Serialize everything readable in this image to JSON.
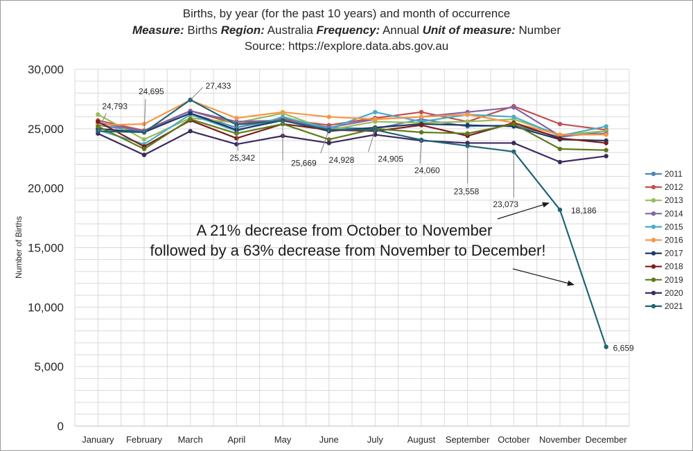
{
  "chart_data": {
    "type": "line",
    "title": "Births, by year (for the past 10 years) and month of occurrence",
    "subtitle_parts": [
      {
        "k": "Measure:",
        "v": "Births"
      },
      {
        "k": "Region:",
        "v": "Australia"
      },
      {
        "k": "Frequency:",
        "v": "Annual"
      },
      {
        "k": "Unit of measure:",
        "v": "Number"
      }
    ],
    "source": "Source: https://explore.data.abs.gov.au",
    "ylabel": "Number of Births",
    "ylim": [
      0,
      30000
    ],
    "y_ticks": [
      "0",
      "5,000",
      "10,000",
      "15,000",
      "20,000",
      "25,000",
      "30,000"
    ],
    "grid": true,
    "legend_position": "right",
    "categories": [
      "January",
      "February",
      "March",
      "April",
      "May",
      "June",
      "July",
      "August",
      "September",
      "October",
      "November",
      "December"
    ],
    "series": [
      {
        "name": "2011",
        "color": "#4e86b8",
        "values": [
          25300,
          24750,
          26300,
          25100,
          25900,
          25100,
          25000,
          25800,
          25200,
          25300,
          24300,
          24800
        ]
      },
      {
        "name": "2012",
        "color": "#c0504d",
        "values": [
          25700,
          24850,
          26500,
          25400,
          25800,
          25300,
          25900,
          26400,
          25600,
          26900,
          25400,
          24900
        ]
      },
      {
        "name": "2013",
        "color": "#9bbb59",
        "values": [
          26200,
          24100,
          25900,
          25500,
          26300,
          24900,
          25600,
          25500,
          25600,
          25800,
          24500,
          24800
        ]
      },
      {
        "name": "2014",
        "color": "#8064a2",
        "values": [
          25500,
          24800,
          26500,
          25600,
          25700,
          25100,
          25800,
          26000,
          26400,
          26800,
          24400,
          24600
        ]
      },
      {
        "name": "2015",
        "color": "#4bacc6",
        "values": [
          24900,
          23700,
          26200,
          24800,
          26000,
          25000,
          26400,
          25600,
          26200,
          26000,
          24400,
          25200
        ]
      },
      {
        "name": "2016",
        "color": "#f79646",
        "values": [
          25300,
          25400,
          27400,
          25900,
          26400,
          26000,
          25800,
          26000,
          26200,
          25500,
          24500,
          24500
        ]
      },
      {
        "name": "2017",
        "color": "#1f3864",
        "values": [
          25000,
          24700,
          26300,
          24900,
          25700,
          24800,
          25100,
          25400,
          25300,
          25200,
          24100,
          24000
        ]
      },
      {
        "name": "2018",
        "color": "#7b1d1d",
        "values": [
          25600,
          23500,
          25700,
          24200,
          25400,
          24900,
          24800,
          25300,
          24400,
          25500,
          24200,
          23800
        ]
      },
      {
        "name": "2019",
        "color": "#5e7a18",
        "values": [
          25200,
          23300,
          25800,
          24600,
          25400,
          24100,
          25000,
          24700,
          24600,
          25400,
          23300,
          23200
        ]
      },
      {
        "name": "2020",
        "color": "#3c2a5c",
        "values": [
          24600,
          22800,
          24800,
          23700,
          24400,
          23800,
          24500,
          24000,
          23800,
          23800,
          22200,
          22700
        ]
      },
      {
        "name": "2021",
        "color": "#1e6375",
        "values": [
          24793,
          24695,
          27433,
          25342,
          25669,
          24928,
          24905,
          24060,
          23558,
          23073,
          18186,
          6659
        ]
      }
    ],
    "data_labels": [
      {
        "text": "24,793"
      },
      {
        "text": "24,695"
      },
      {
        "text": "27,433"
      },
      {
        "text": "25,342"
      },
      {
        "text": "25,669"
      },
      {
        "text": "24,928"
      },
      {
        "text": "24,905"
      },
      {
        "text": "24,060"
      },
      {
        "text": "23,558"
      },
      {
        "text": "23,073"
      },
      {
        "text": "18,186"
      },
      {
        "text": "6,659"
      }
    ],
    "annotation": [
      "A 21% decrease from October to November",
      "followed by a 63% decrease from November to December!"
    ]
  }
}
